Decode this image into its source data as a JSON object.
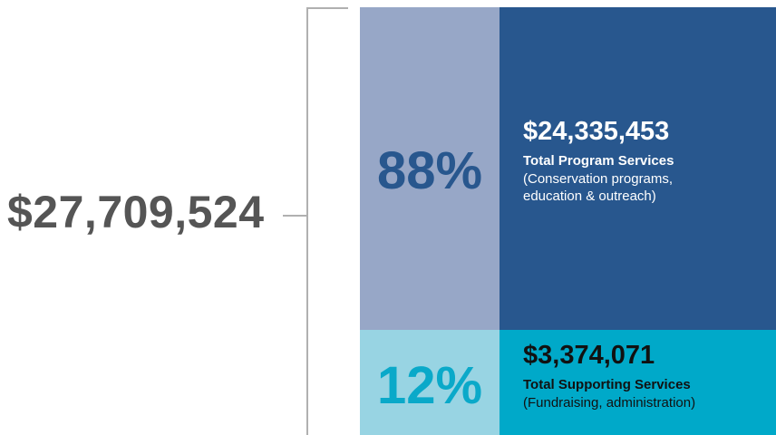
{
  "total_label": "$27,709,524",
  "segments": [
    {
      "percent_label": "88%",
      "amount_label": "$24,335,453",
      "title": "Total Program Services",
      "note_lines": [
        "(Conservation programs,",
        "education & outreach)"
      ]
    },
    {
      "percent_label": "12%",
      "amount_label": "$3,374,071",
      "title": "Total Supporting Services",
      "note_lines": [
        "(Fundraising, administration)"
      ]
    }
  ]
}
